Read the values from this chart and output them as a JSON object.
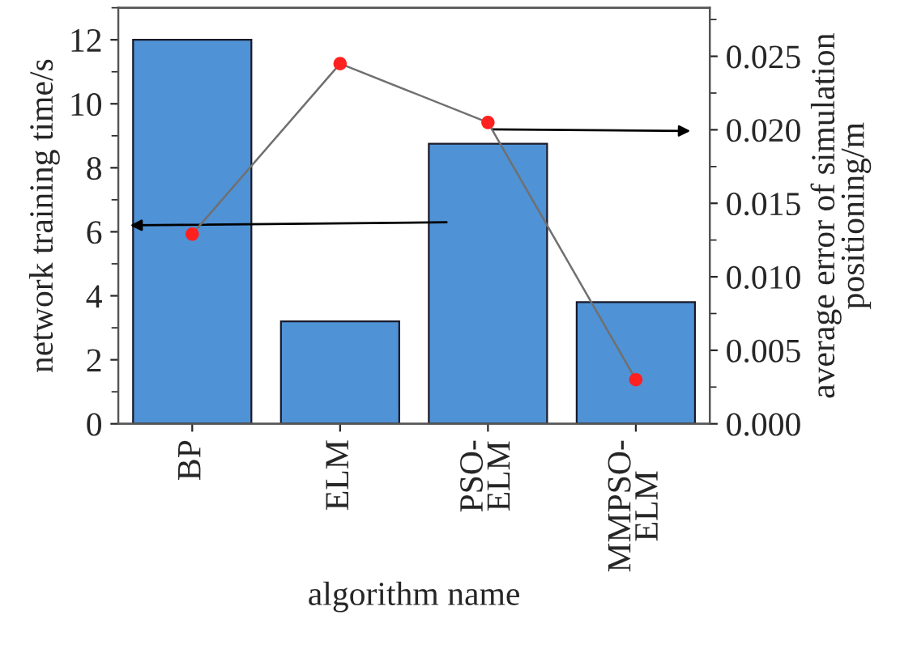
{
  "chart_data": {
    "type": "bar",
    "xlabel": "algorithm name",
    "ylabel": "network training time/s",
    "y2label": "average error of simulation\npositioning/m",
    "categories": [
      "BP",
      "ELM",
      "PSO-\nELM",
      "MMPSO-\nELM"
    ],
    "series": [
      {
        "color": "#4f92d6",
        "values": [
          12.0,
          3.2,
          8.75,
          3.8
        ]
      },
      {
        "type": "line",
        "axis": "y2",
        "color": "#ff2020",
        "marker": "circle",
        "values": [
          0.0129,
          0.0245,
          0.0205,
          0.003
        ]
      }
    ],
    "ylim": [
      0,
      13
    ],
    "yticks": [
      0,
      2,
      4,
      6,
      8,
      10,
      12
    ],
    "y2lim": [
      0,
      0.0283
    ],
    "y2ticks": [
      {
        "value": 0,
        "label": "0.000"
      },
      {
        "value": 0.005,
        "label": "0.005"
      },
      {
        "value": 0.01,
        "label": "0.010"
      },
      {
        "value": 0.015,
        "label": "0.015"
      },
      {
        "value": 0.02,
        "label": "0.020"
      },
      {
        "value": 0.025,
        "label": "0.025"
      }
    ],
    "grid": false,
    "legend": false
  }
}
